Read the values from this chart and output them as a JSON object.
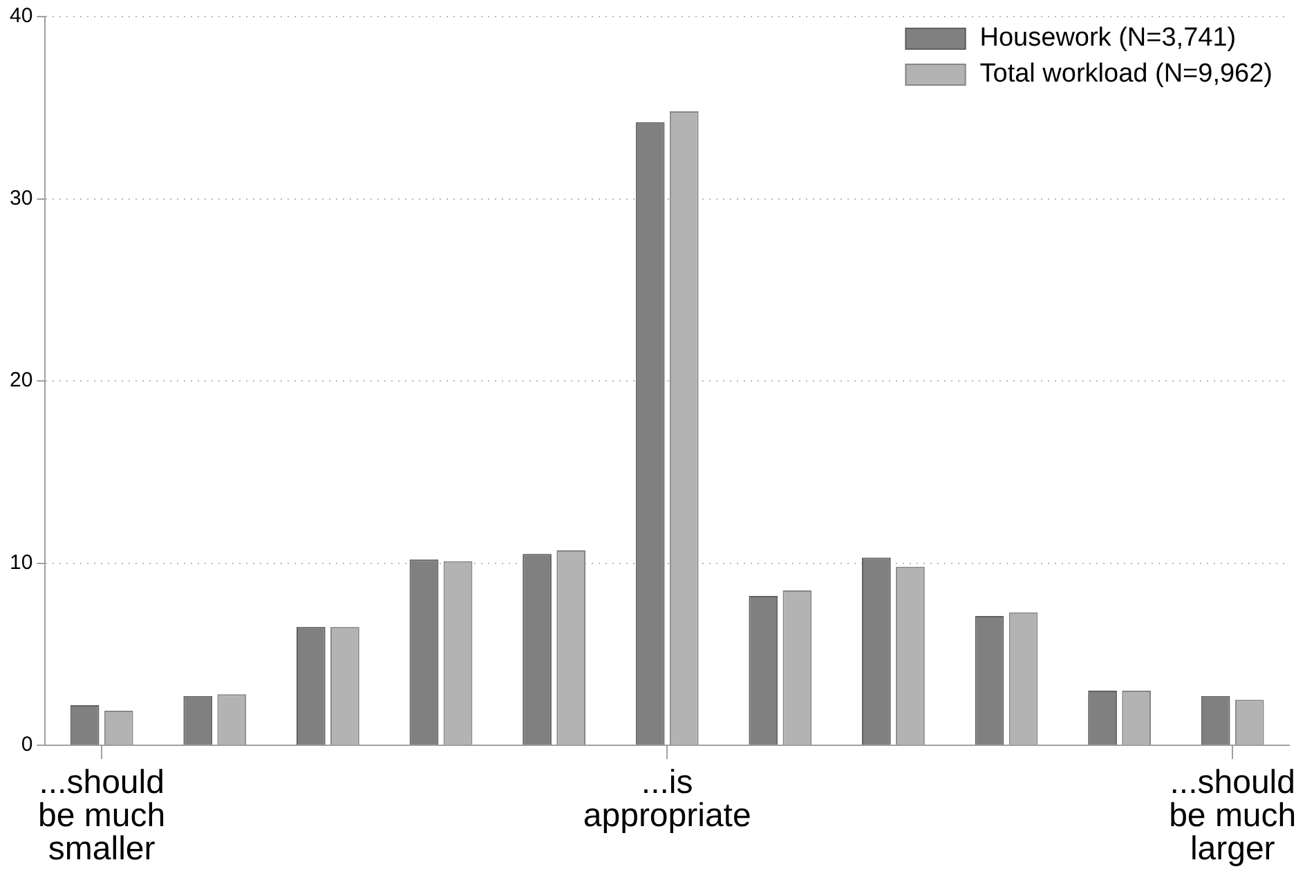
{
  "chart_data": {
    "type": "bar",
    "categories": [
      "...should be much smaller",
      null,
      null,
      null,
      null,
      "...is appropriate",
      null,
      null,
      null,
      null,
      "...should be much larger"
    ],
    "series": [
      {
        "name": "Housework (N=3,741)",
        "color": "#808080",
        "values": [
          2.2,
          2.7,
          6.5,
          10.2,
          10.5,
          34.2,
          8.2,
          10.3,
          7.1,
          3.0,
          2.7
        ]
      },
      {
        "name": "Total workload (N=9,962)",
        "color": "#b3b3b3",
        "values": [
          1.9,
          2.8,
          6.5,
          10.1,
          10.7,
          34.8,
          8.5,
          9.8,
          7.3,
          3.0,
          2.5
        ]
      }
    ],
    "ylim": [
      0,
      40
    ],
    "yticks": [
      0,
      10,
      20,
      30,
      40
    ],
    "grid": "y",
    "legend": "top right"
  }
}
